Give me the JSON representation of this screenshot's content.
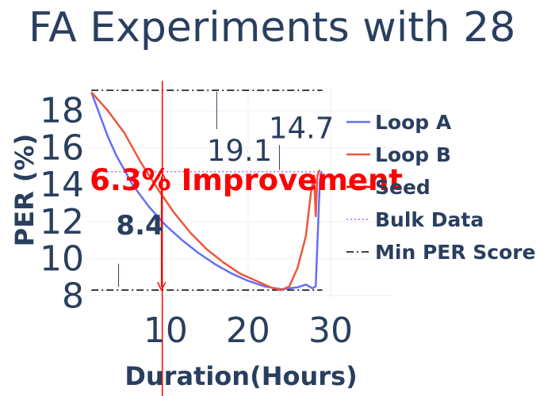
{
  "chart_data": {
    "type": "line",
    "title": "FA Experiments with 28",
    "xlabel": "Duration(Hours)",
    "ylabel": "PER (%)",
    "xlim": [
      0.5,
      37.5
    ],
    "ylim": [
      7.8,
      19.1
    ],
    "x_ticks": [
      "10",
      "20",
      "30"
    ],
    "y_ticks": [
      "8",
      "10",
      "12",
      "14",
      "16",
      "18"
    ],
    "grid": true,
    "legend_position": "right",
    "series": [
      {
        "name": "Loop A",
        "color": "#636efa",
        "points": [
          [
            1.0,
            19.0
          ],
          [
            2,
            17.8
          ],
          [
            3,
            16.6
          ],
          [
            4,
            15.6
          ],
          [
            5,
            14.8
          ],
          [
            6,
            14.0
          ],
          [
            8,
            12.8
          ],
          [
            10,
            11.8
          ],
          [
            12,
            11.0
          ],
          [
            14,
            10.3
          ],
          [
            16,
            9.7
          ],
          [
            18,
            9.2
          ],
          [
            20,
            8.8
          ],
          [
            22,
            8.5
          ],
          [
            24,
            8.35
          ],
          [
            26,
            8.45
          ],
          [
            27,
            8.6
          ],
          [
            27.8,
            8.4
          ],
          [
            28.2,
            8.5
          ],
          [
            28.5,
            12.0
          ],
          [
            28.7,
            14.2
          ],
          [
            28.9,
            14.7
          ]
        ]
      },
      {
        "name": "Loop B",
        "color": "#ef553b",
        "points": [
          [
            1.0,
            19.0
          ],
          [
            3,
            18.0
          ],
          [
            5,
            16.8
          ],
          [
            7,
            15.2
          ],
          [
            9,
            13.8
          ],
          [
            11,
            12.5
          ],
          [
            13,
            11.4
          ],
          [
            15,
            10.5
          ],
          [
            17,
            9.8
          ],
          [
            19,
            9.2
          ],
          [
            21,
            8.8
          ],
          [
            23,
            8.4
          ],
          [
            24,
            8.3
          ],
          [
            25,
            8.5
          ],
          [
            26,
            9.5
          ],
          [
            27,
            11.2
          ],
          [
            27.6,
            13.5
          ],
          [
            28,
            14.5
          ],
          [
            28.2,
            12.3
          ],
          [
            28.4,
            14.5
          ],
          [
            28.7,
            14.8
          ]
        ]
      },
      {
        "name": "Seed",
        "color": "#ff0000",
        "points": [
          [
            9.6,
            4.0
          ],
          [
            9.6,
            19.1
          ]
        ]
      },
      {
        "name": "Bulk Data",
        "color": "#ab63fa",
        "points": [
          [
            1.0,
            14.7
          ],
          [
            29.0,
            14.7
          ]
        ]
      },
      {
        "name": "Min PER Score",
        "color": "#000000",
        "points": [
          [
            1.0,
            8.3
          ],
          [
            29.0,
            8.3
          ],
          [
            1.0,
            19.1
          ],
          [
            29.0,
            19.1
          ]
        ]
      }
    ],
    "annotations": [
      {
        "text": "14.7",
        "x": 22.5,
        "y": 16.5
      },
      {
        "text": "19.1",
        "x": 15.0,
        "y": 15.3
      },
      {
        "text": "8.4",
        "x": 4.0,
        "y": 11.3
      },
      {
        "text": "6.3% Improvement",
        "x": 0.8,
        "y": 13.7
      }
    ]
  }
}
